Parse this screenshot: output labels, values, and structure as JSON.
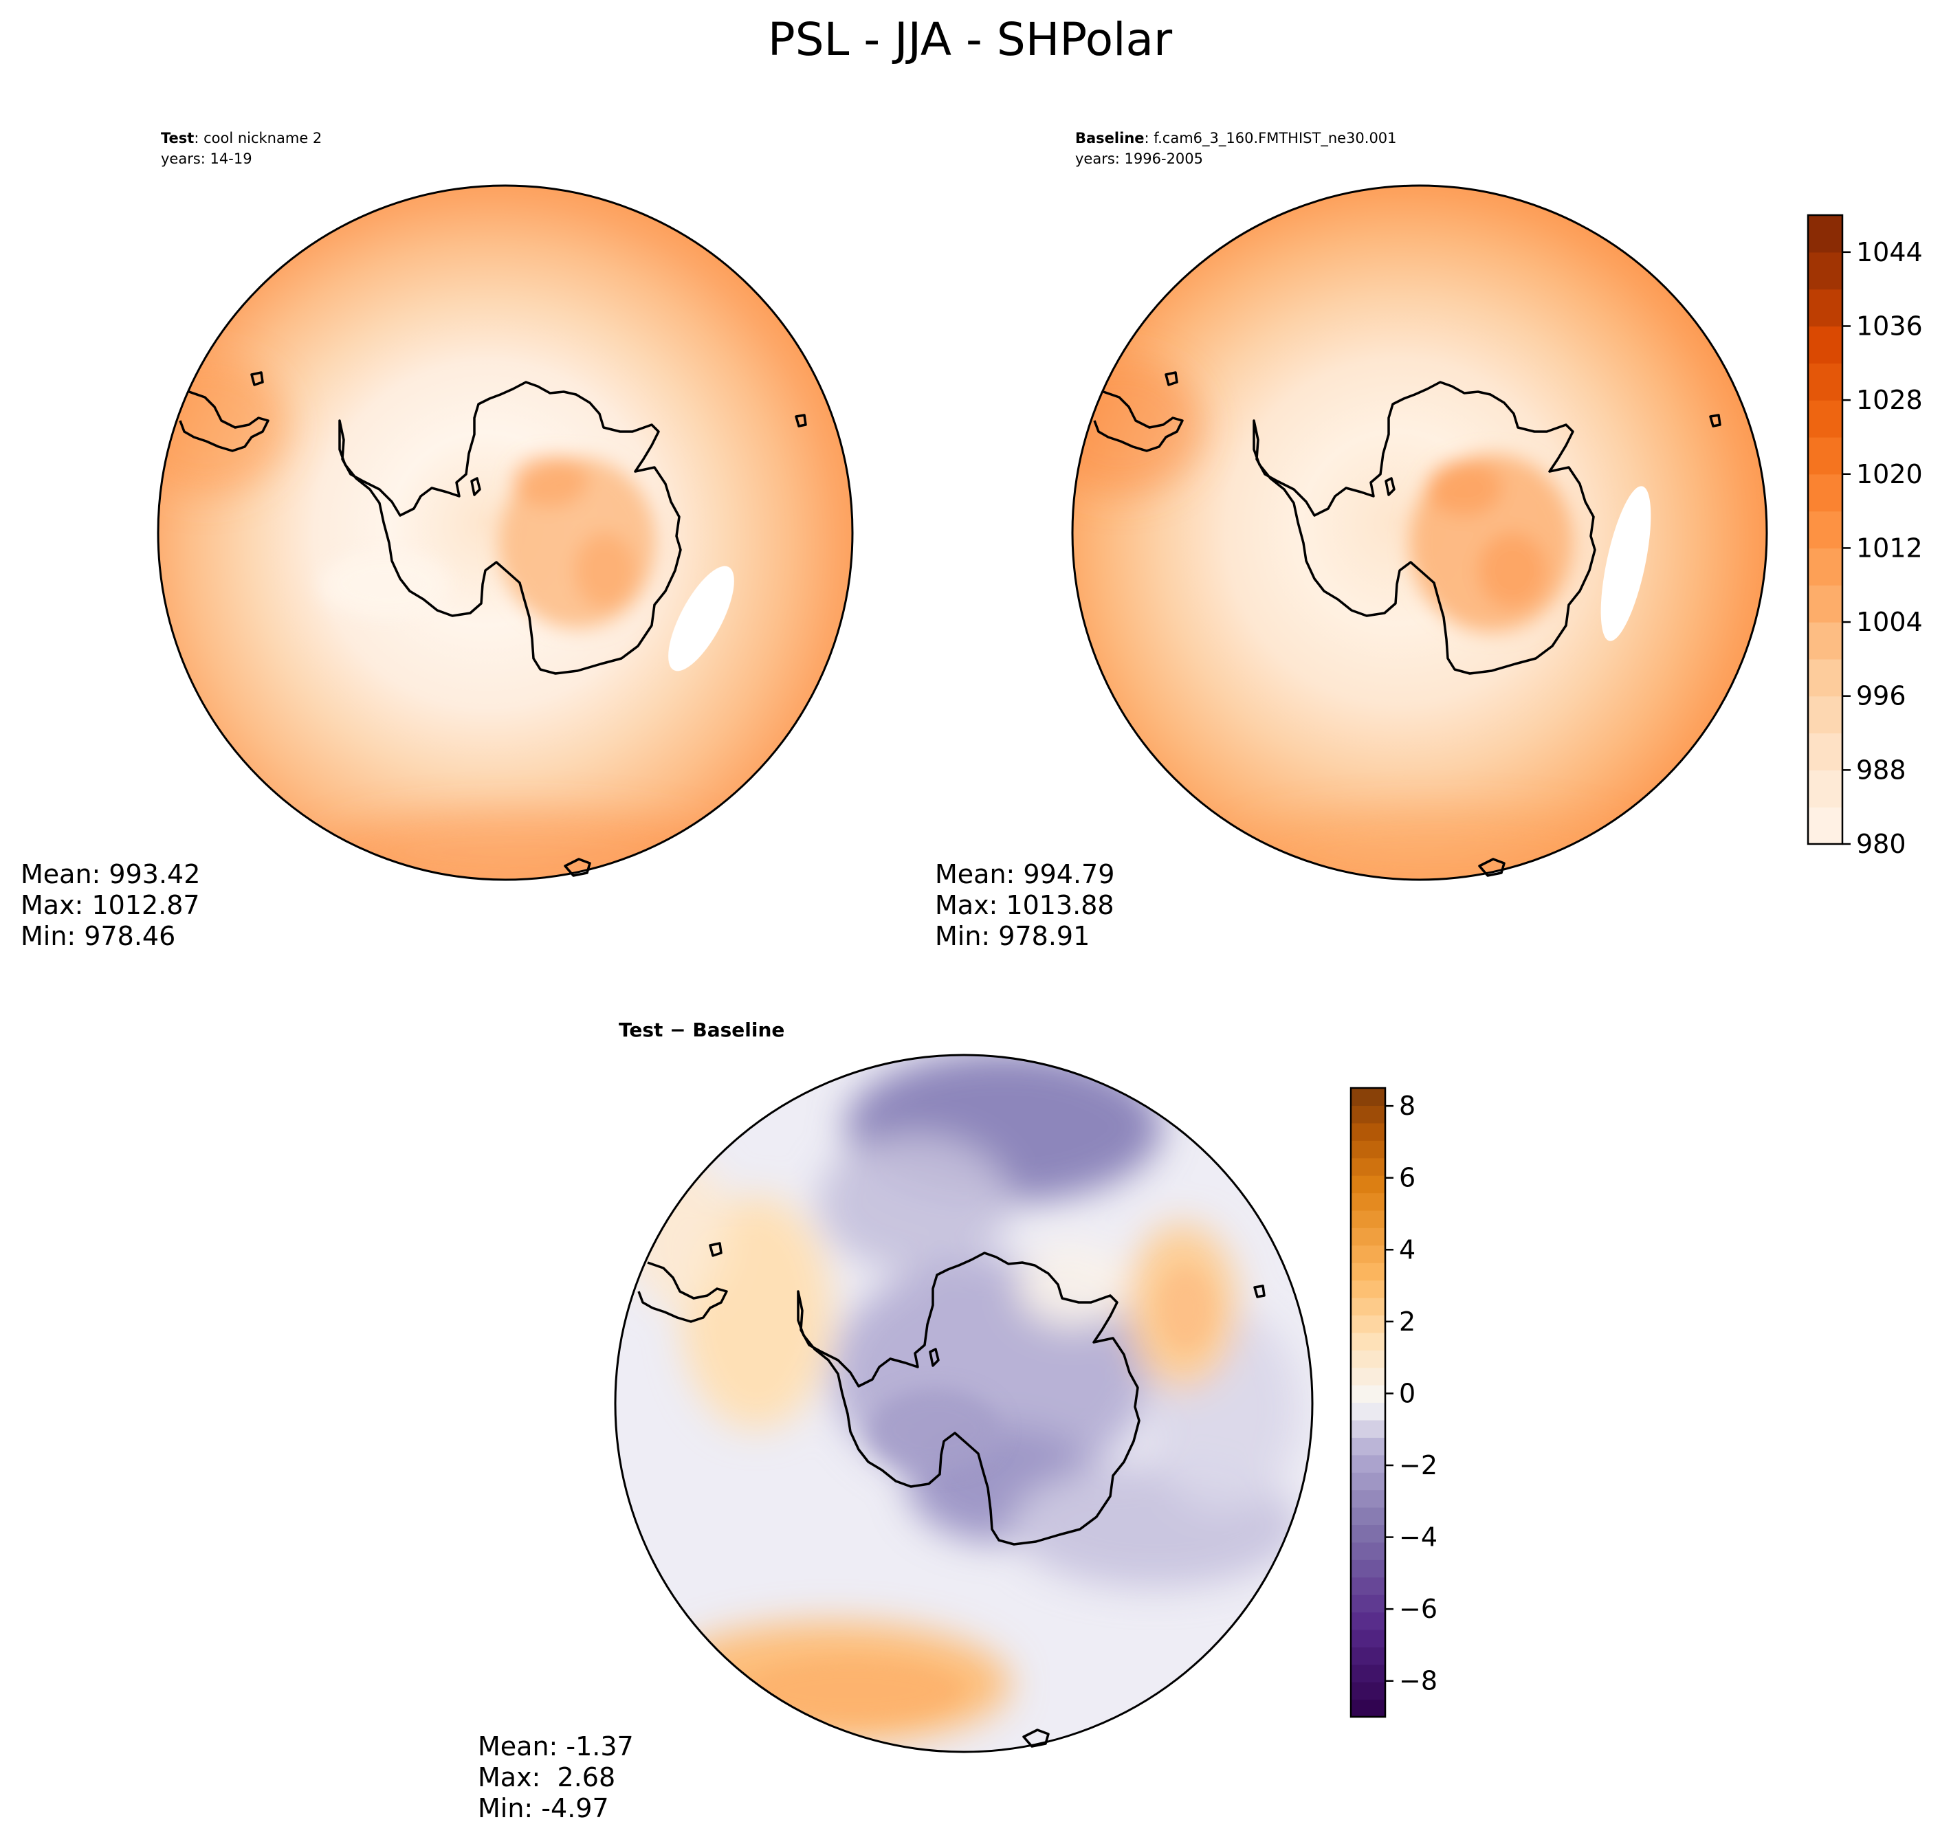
{
  "figure": {
    "title": "PSL - JJA - SHPolar"
  },
  "panels": [
    {
      "id": "test",
      "label_bold": "Test",
      "label_rest": ": cool nickname 2",
      "years": "years: 14-19",
      "stats": {
        "mean": "Mean: 993.42",
        "max": "Max: 1012.87",
        "min": "Min: 978.46"
      }
    },
    {
      "id": "baseline",
      "label_bold": "Baseline",
      "label_rest": ": f.cam6_3_160.FMTHIST_ne30.001",
      "years": "years: 1996-2005",
      "stats": {
        "mean": "Mean: 994.79",
        "max": "Max: 1013.88",
        "min": "Min: 978.91"
      }
    },
    {
      "id": "diff",
      "label": "Test − Baseline",
      "stats": {
        "mean": "Mean: -1.37",
        "max": "Max:  2.68",
        "min": "Min: -4.97"
      }
    }
  ],
  "colorbars": {
    "abs": {
      "min": 980,
      "max": 1048,
      "step": 4,
      "ticks": [
        980,
        988,
        996,
        1004,
        1012,
        1020,
        1028,
        1036,
        1044
      ],
      "tick_labels": [
        "980",
        "988",
        "996",
        "1004",
        "1012",
        "1020",
        "1028",
        "1036",
        "1044"
      ],
      "colormap": "oranges"
    },
    "diff": {
      "min": -9,
      "max": 8.5,
      "ticks": [
        -8,
        -6,
        -4,
        -2,
        0,
        2,
        4,
        6,
        8
      ],
      "tick_labels": [
        "−8",
        "−6",
        "−4",
        "−2",
        "0",
        "2",
        "4",
        "6",
        "8"
      ],
      "colormap": "purple-orange diverging"
    }
  },
  "colors": {
    "abs_low": "#fff5eb",
    "abs_high": "#7f2704",
    "diff_low": "#2d004b",
    "diff_mid": "#f7f7f7",
    "diff_high": "#7f3b08"
  }
}
